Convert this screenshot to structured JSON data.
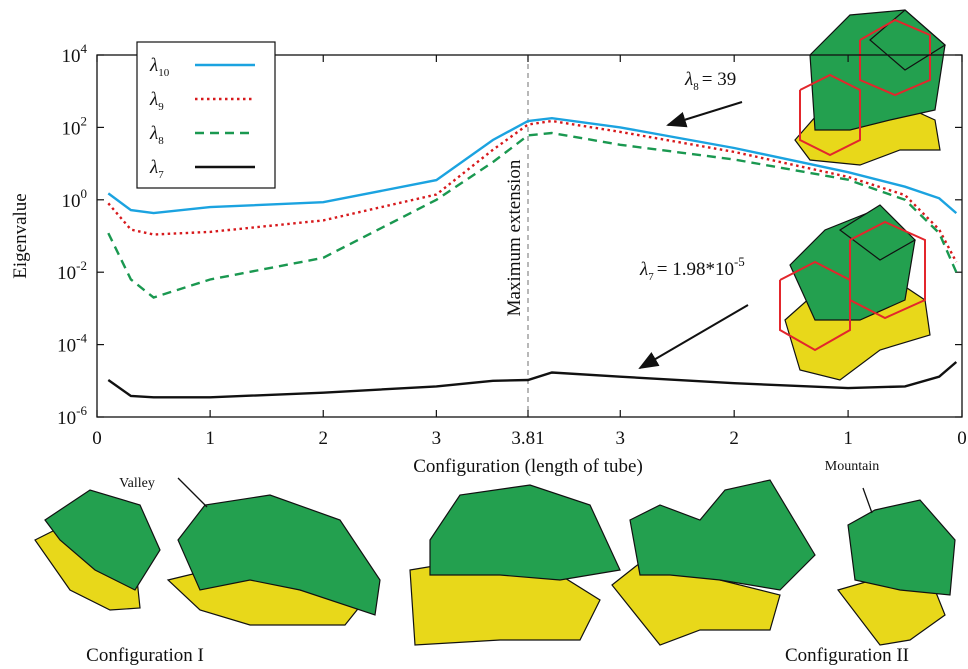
{
  "chart_data": {
    "type": "line",
    "y_label": "Eigenvalue",
    "x_label": "Configuration (length of tube)",
    "log_y": true,
    "x_folded": true,
    "grid": false,
    "legend": "upper left",
    "xlim": [
      0,
      3.81
    ],
    "ylim": [
      1e-06,
      10000
    ],
    "yticks": [
      {
        "value": 10000,
        "label": "10",
        "exponent": "4"
      },
      {
        "value": 100,
        "label": "10",
        "exponent": "2"
      },
      {
        "value": 1,
        "label": "10",
        "exponent": "0"
      },
      {
        "value": 0.01,
        "label": "10",
        "exponent": "-2"
      },
      {
        "value": 0.0001,
        "label": "10",
        "exponent": "-4"
      },
      {
        "value": 1e-06,
        "label": "10",
        "exponent": "-6"
      }
    ],
    "xticks_I": [
      0,
      1,
      2,
      3,
      3.81
    ],
    "xticks_II": [
      3,
      2,
      1,
      0
    ],
    "x_I": [
      0.1,
      0.3,
      0.5,
      1,
      2,
      3,
      3.5,
      3.81
    ],
    "x_II": [
      3.6,
      3,
      2,
      1,
      0.5,
      0.2,
      0.05
    ],
    "series": [
      {
        "name": "λ",
        "subscript": "10",
        "color": "#1ba3e0",
        "style": "solid",
        "values_I": [
          1.5,
          0.52,
          0.43,
          0.63,
          0.86,
          3.5,
          45,
          150
        ],
        "values_II": [
          180,
          100,
          27,
          5.8,
          2.3,
          1.1,
          0.43
        ]
      },
      {
        "name": "λ",
        "subscript": "9",
        "color": "#d7191c",
        "style": "dotted",
        "values_I": [
          0.8,
          0.15,
          0.11,
          0.13,
          0.27,
          1.4,
          24,
          120
        ],
        "values_II": [
          150,
          75,
          21,
          4.3,
          1.35,
          0.15,
          0.019
        ]
      },
      {
        "name": "λ",
        "subscript": "8",
        "color": "#1a9850",
        "style": "dashed",
        "values_I": [
          0.12,
          0.0063,
          0.002,
          0.0063,
          0.025,
          1.0,
          11,
          60
        ],
        "values_II": [
          70,
          33,
          13,
          3.6,
          1.0,
          0.12,
          0.01
        ]
      },
      {
        "name": "λ",
        "subscript": "7",
        "color": "#111111",
        "style": "solid",
        "values_I": [
          1.05e-05,
          3.8e-06,
          3.5e-06,
          3.5e-06,
          4.7e-06,
          7e-06,
          1e-05,
          1.05e-05
        ],
        "values_II": [
          1.7e-05,
          1.3e-05,
          8.6e-06,
          6.3e-06,
          7e-06,
          1.3e-05,
          3.3e-05
        ]
      }
    ],
    "vline_label": "Maximum extension",
    "annotations": [
      {
        "symbol": "λ",
        "subscript": "8",
        "text": "= 39"
      },
      {
        "symbol": "λ",
        "subscript": "7",
        "text": "= 1.98*10",
        "exponent": "-5"
      }
    ],
    "figure_labels": {
      "valley": "Valley",
      "mountain": "Mountain",
      "config_1": "Configuration I",
      "config_2": "Configuration II"
    }
  }
}
